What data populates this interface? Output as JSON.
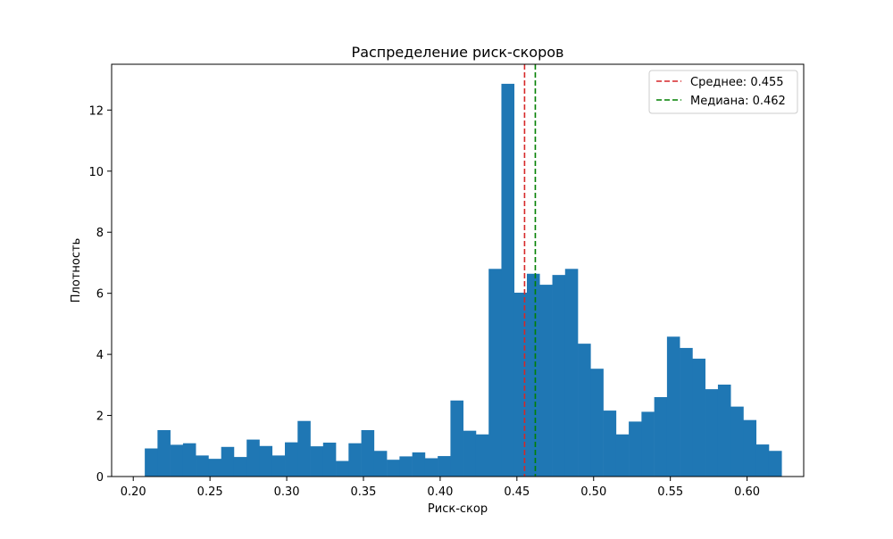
{
  "chart_data": {
    "type": "bar",
    "title": "Распределение риск-скоров",
    "xlabel": "Риск-скор",
    "ylabel": "Плотность",
    "xlim": [
      0.1859,
      0.6369
    ],
    "ylim": [
      0,
      13.5
    ],
    "bin_start": 0.2075,
    "bin_width": 0.0083,
    "values": [
      0.92,
      1.52,
      1.04,
      1.09,
      0.69,
      0.58,
      0.97,
      0.64,
      1.21,
      1.0,
      0.69,
      1.12,
      1.82,
      0.99,
      1.11,
      0.51,
      1.09,
      1.52,
      0.84,
      0.55,
      0.66,
      0.79,
      0.6,
      0.67,
      2.49,
      1.5,
      1.38,
      6.8,
      12.86,
      6.02,
      6.64,
      6.28,
      6.6,
      6.8,
      4.35,
      3.53,
      2.16,
      1.38,
      1.8,
      2.12,
      2.6,
      4.58,
      4.21,
      3.86,
      2.86,
      3.01,
      2.29,
      1.85,
      1.05,
      0.84
    ],
    "bar_color": "#1f77b4",
    "x_ticks": [
      0.2,
      0.25,
      0.3,
      0.35,
      0.4,
      0.45,
      0.5,
      0.55,
      0.6
    ],
    "x_tick_labels": [
      "0.20",
      "0.25",
      "0.30",
      "0.35",
      "0.40",
      "0.45",
      "0.50",
      "0.55",
      "0.60"
    ],
    "y_ticks": [
      0,
      2,
      4,
      6,
      8,
      10,
      12
    ],
    "y_tick_labels": [
      "0",
      "2",
      "4",
      "6",
      "8",
      "10",
      "12"
    ],
    "reference_lines": [
      {
        "name": "Среднее: 0.455",
        "x": 0.455,
        "color": "#d62728",
        "style": "dashed"
      },
      {
        "name": "Медиана: 0.462",
        "x": 0.462,
        "color": "#008000",
        "style": "dashed"
      }
    ],
    "legend": {
      "position": "top-right",
      "entries": [
        "Среднее: 0.455",
        "Медиана: 0.462"
      ]
    },
    "grid": false
  }
}
